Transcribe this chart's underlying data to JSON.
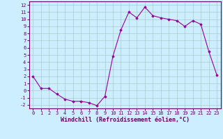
{
  "x": [
    0,
    1,
    2,
    3,
    4,
    5,
    6,
    7,
    8,
    9,
    10,
    11,
    12,
    13,
    14,
    15,
    16,
    17,
    18,
    19,
    20,
    21,
    22,
    23
  ],
  "y": [
    2.0,
    0.3,
    0.3,
    -0.5,
    -1.2,
    -1.5,
    -1.5,
    -1.7,
    -2.1,
    -0.8,
    4.8,
    8.5,
    11.0,
    10.2,
    11.7,
    10.5,
    10.2,
    10.0,
    9.8,
    9.0,
    9.8,
    9.3,
    5.5,
    2.2
  ],
  "xlim": [
    -0.5,
    23.5
  ],
  "ylim": [
    -2.5,
    12.5
  ],
  "yticks": [
    -2,
    -1,
    0,
    1,
    2,
    3,
    4,
    5,
    6,
    7,
    8,
    9,
    10,
    11,
    12
  ],
  "xticks": [
    0,
    1,
    2,
    3,
    4,
    5,
    6,
    7,
    8,
    9,
    10,
    11,
    12,
    13,
    14,
    15,
    16,
    17,
    18,
    19,
    20,
    21,
    22,
    23
  ],
  "xlabel": "Windchill (Refroidissement éolien,°C)",
  "line_color": "#990099",
  "marker": "D",
  "marker_size": 1.8,
  "bg_color": "#cceeff",
  "grid_color": "#aacccc",
  "tick_fontsize": 5.0,
  "xlabel_fontsize": 6.0,
  "line_color_dark": "#660066"
}
